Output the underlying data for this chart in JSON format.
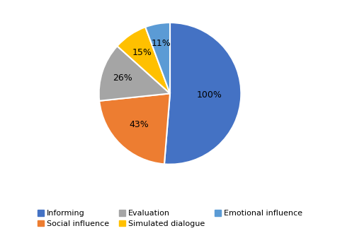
{
  "labels": [
    "Informing",
    "Social influence",
    "Evaluation",
    "Simulated dialogue",
    "Emotional influence"
  ],
  "values": [
    100,
    43,
    26,
    15,
    11
  ],
  "colors": [
    "#4472C4",
    "#ED7D31",
    "#A5A5A5",
    "#FFC000",
    "#5B9BD5"
  ],
  "pct_labels": [
    "100%",
    "43%",
    "26%",
    "15%",
    "11%"
  ],
  "background_color": "#FFFFFF",
  "legend_order": [
    0,
    1,
    2,
    3,
    4
  ],
  "legend_labels_row1": [
    "Informing",
    "Social influence",
    "Evaluation"
  ],
  "legend_labels_row2": [
    "Simulated dialogue",
    "Emotional influence"
  ],
  "figsize": [
    4.8,
    3.37
  ],
  "dpi": 100,
  "label_radii": [
    0.55,
    0.62,
    0.7,
    0.7,
    0.72
  ]
}
